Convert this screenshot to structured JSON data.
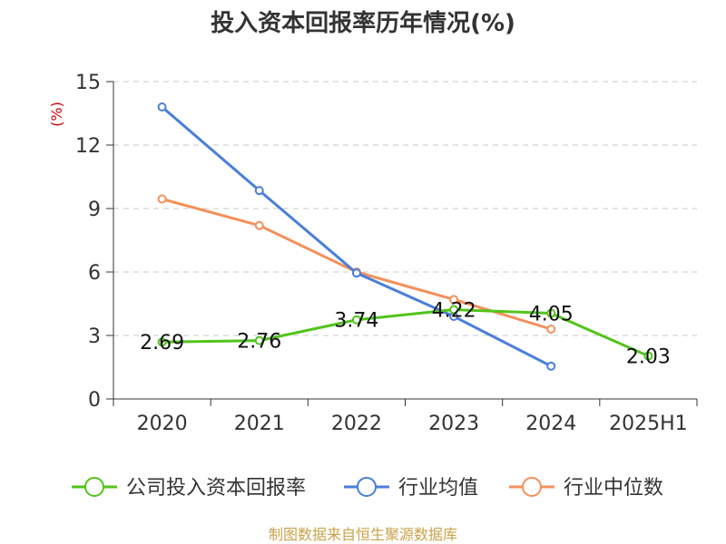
{
  "chart_data": {
    "type": "line",
    "title": "投入资本回报率历年情况(%)",
    "ylabel": "(%)",
    "xlabel": "",
    "categories": [
      "2020",
      "2021",
      "2022",
      "2023",
      "2024",
      "2025H1"
    ],
    "ylim": [
      0,
      15
    ],
    "yticks": [
      0,
      3,
      6,
      9,
      12,
      15
    ],
    "grid": "horizontal-dashed",
    "legend_placement": "bottom",
    "series": [
      {
        "name": "公司投入资本回报率",
        "color": "#52c41a",
        "values": [
          2.69,
          2.76,
          3.74,
          4.22,
          4.05,
          2.03
        ],
        "show_labels": true
      },
      {
        "name": "行业均值",
        "color": "#4a7fd9",
        "values": [
          13.8,
          9.85,
          5.95,
          3.9,
          1.55,
          null
        ],
        "show_labels": false
      },
      {
        "name": "行业中位数",
        "color": "#f4905a",
        "values": [
          9.45,
          8.2,
          6.0,
          4.7,
          3.3,
          null
        ],
        "show_labels": false
      }
    ]
  },
  "source": "制图数据来自恒生聚源数据库"
}
